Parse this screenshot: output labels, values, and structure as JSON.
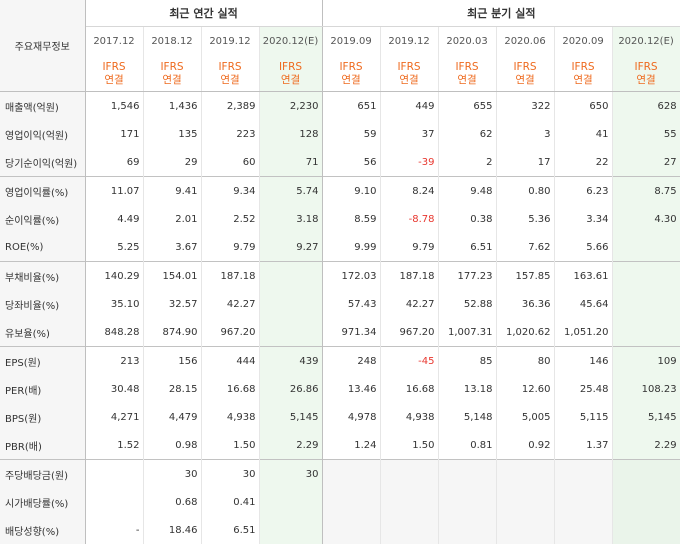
{
  "header": {
    "label": "주요재무정보",
    "annual_title": "최근 연간 실적",
    "quarterly_title": "최근 분기 실적"
  },
  "columns": [
    {
      "period": "2017.12",
      "basis": "IFRS",
      "scope": "연결",
      "estimate": false,
      "group": "annual"
    },
    {
      "period": "2018.12",
      "basis": "IFRS",
      "scope": "연결",
      "estimate": false,
      "group": "annual"
    },
    {
      "period": "2019.12",
      "basis": "IFRS",
      "scope": "연결",
      "estimate": false,
      "group": "annual"
    },
    {
      "period": "2020.12(E)",
      "basis": "IFRS",
      "scope": "연결",
      "estimate": true,
      "group": "annual"
    },
    {
      "period": "2019.09",
      "basis": "IFRS",
      "scope": "연결",
      "estimate": false,
      "group": "quarter"
    },
    {
      "period": "2019.12",
      "basis": "IFRS",
      "scope": "연결",
      "estimate": false,
      "group": "quarter"
    },
    {
      "period": "2020.03",
      "basis": "IFRS",
      "scope": "연결",
      "estimate": false,
      "group": "quarter"
    },
    {
      "period": "2020.06",
      "basis": "IFRS",
      "scope": "연결",
      "estimate": false,
      "group": "quarter"
    },
    {
      "period": "2020.09",
      "basis": "IFRS",
      "scope": "연결",
      "estimate": false,
      "group": "quarter"
    },
    {
      "period": "2020.12(E)",
      "basis": "IFRS",
      "scope": "연결",
      "estimate": true,
      "group": "quarter"
    }
  ],
  "groups": [
    {
      "rows": [
        {
          "label": "매출액(억원)",
          "values": [
            "1,546",
            "1,436",
            "2,389",
            "2,230",
            "651",
            "449",
            "655",
            "322",
            "650",
            "628"
          ]
        },
        {
          "label": "영업이익(억원)",
          "values": [
            "171",
            "135",
            "223",
            "128",
            "59",
            "37",
            "62",
            "3",
            "41",
            "55"
          ]
        },
        {
          "label": "당기순이익(억원)",
          "values": [
            "69",
            "29",
            "60",
            "71",
            "56",
            "-39",
            "2",
            "17",
            "22",
            "27"
          ]
        }
      ]
    },
    {
      "rows": [
        {
          "label": "영업이익률(%)",
          "values": [
            "11.07",
            "9.41",
            "9.34",
            "5.74",
            "9.10",
            "8.24",
            "9.48",
            "0.80",
            "6.23",
            "8.75"
          ]
        },
        {
          "label": "순이익률(%)",
          "values": [
            "4.49",
            "2.01",
            "2.52",
            "3.18",
            "8.59",
            "-8.78",
            "0.38",
            "5.36",
            "3.34",
            "4.30"
          ]
        },
        {
          "label": "ROE(%)",
          "values": [
            "5.25",
            "3.67",
            "9.79",
            "9.27",
            "9.99",
            "9.79",
            "6.51",
            "7.62",
            "5.66",
            ""
          ]
        }
      ]
    },
    {
      "rows": [
        {
          "label": "부채비율(%)",
          "values": [
            "140.29",
            "154.01",
            "187.18",
            "",
            "172.03",
            "187.18",
            "177.23",
            "157.85",
            "163.61",
            ""
          ]
        },
        {
          "label": "당좌비율(%)",
          "values": [
            "35.10",
            "32.57",
            "42.27",
            "",
            "57.43",
            "42.27",
            "52.88",
            "36.36",
            "45.64",
            ""
          ]
        },
        {
          "label": "유보율(%)",
          "values": [
            "848.28",
            "874.90",
            "967.20",
            "",
            "971.34",
            "967.20",
            "1,007.31",
            "1,020.62",
            "1,051.20",
            ""
          ]
        }
      ]
    },
    {
      "rows": [
        {
          "label": "EPS(원)",
          "values": [
            "213",
            "156",
            "444",
            "439",
            "248",
            "-45",
            "85",
            "80",
            "146",
            "109"
          ]
        },
        {
          "label": "PER(배)",
          "values": [
            "30.48",
            "28.15",
            "16.68",
            "26.86",
            "13.46",
            "16.68",
            "13.18",
            "12.60",
            "25.48",
            "108.23"
          ]
        },
        {
          "label": "BPS(원)",
          "values": [
            "4,271",
            "4,479",
            "4,938",
            "5,145",
            "4,978",
            "4,938",
            "5,148",
            "5,005",
            "5,115",
            "5,145"
          ]
        },
        {
          "label": "PBR(배)",
          "values": [
            "1.52",
            "0.98",
            "1.50",
            "2.29",
            "1.24",
            "1.50",
            "0.81",
            "0.92",
            "1.37",
            "2.29"
          ]
        }
      ]
    },
    {
      "rows": [
        {
          "label": "주당배당금(원)",
          "values": [
            "",
            "30",
            "30",
            "30",
            null,
            null,
            null,
            null,
            null,
            null
          ]
        },
        {
          "label": "시가배당률(%)",
          "values": [
            "",
            "0.68",
            "0.41",
            "",
            null,
            null,
            null,
            null,
            null,
            null
          ]
        },
        {
          "label": "배당성향(%)",
          "values": [
            "-",
            "18.46",
            "6.51",
            "",
            null,
            null,
            null,
            null,
            null,
            null
          ]
        }
      ]
    }
  ]
}
